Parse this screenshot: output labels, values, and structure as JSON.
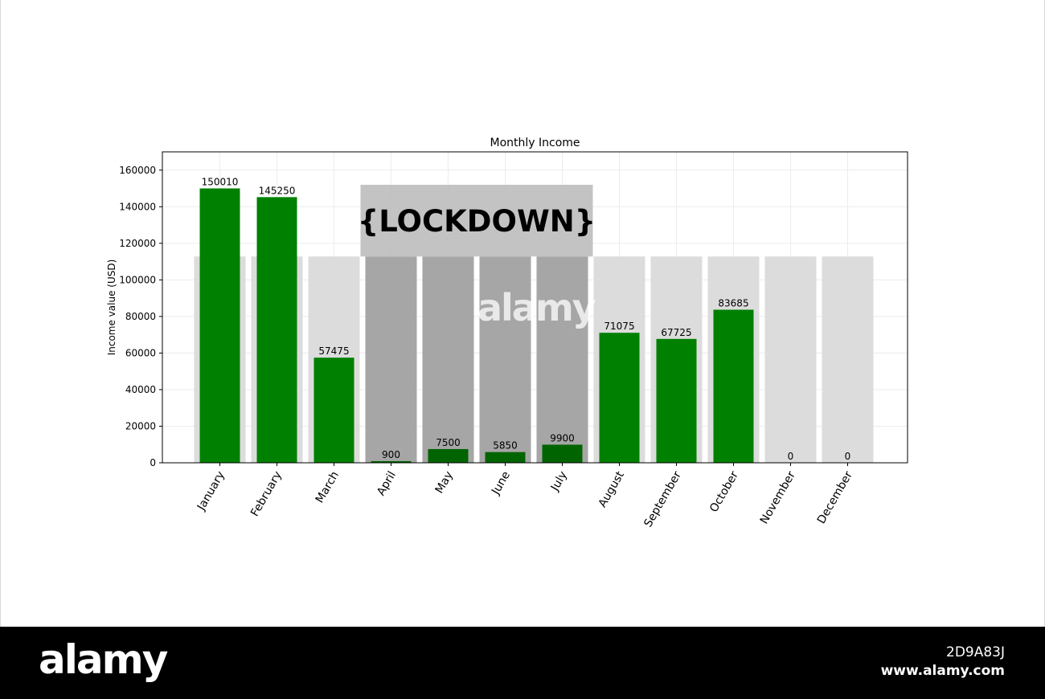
{
  "chart_data": {
    "type": "bar",
    "title": "Monthly Income",
    "xlabel": "",
    "ylabel": "Income value (USD)",
    "ylim": [
      0,
      170000
    ],
    "yticks": [
      0,
      20000,
      40000,
      60000,
      80000,
      100000,
      120000,
      140000,
      160000
    ],
    "grid": true,
    "categories": [
      "January",
      "February",
      "March",
      "April",
      "May",
      "June",
      "July",
      "August",
      "September",
      "October",
      "November",
      "December"
    ],
    "values": [
      150010,
      145250,
      57475,
      900,
      7500,
      5850,
      9900,
      71075,
      67725,
      83685,
      0,
      0
    ],
    "data_labels": [
      "150010",
      "145250",
      "57475",
      "900",
      "7500",
      "5850",
      "9900",
      "71075",
      "67725",
      "83685",
      "0",
      "0"
    ],
    "lockdown_months": [
      "April",
      "May",
      "June",
      "July"
    ],
    "annotation": "{LOCKDOWN}",
    "colors": {
      "bar": "#008000",
      "bar_lockdown": "#006400",
      "background_column": "#dcdcdc",
      "lockdown_column": "#a6a6a6",
      "lockdown_box": "#bdbdbd",
      "grid": "#ececec",
      "axis": "#000000"
    }
  },
  "watermark": {
    "center": "alamy",
    "footer_logo": "alamy",
    "image_id": "2D9A83J",
    "url": "www.alamy.com"
  }
}
